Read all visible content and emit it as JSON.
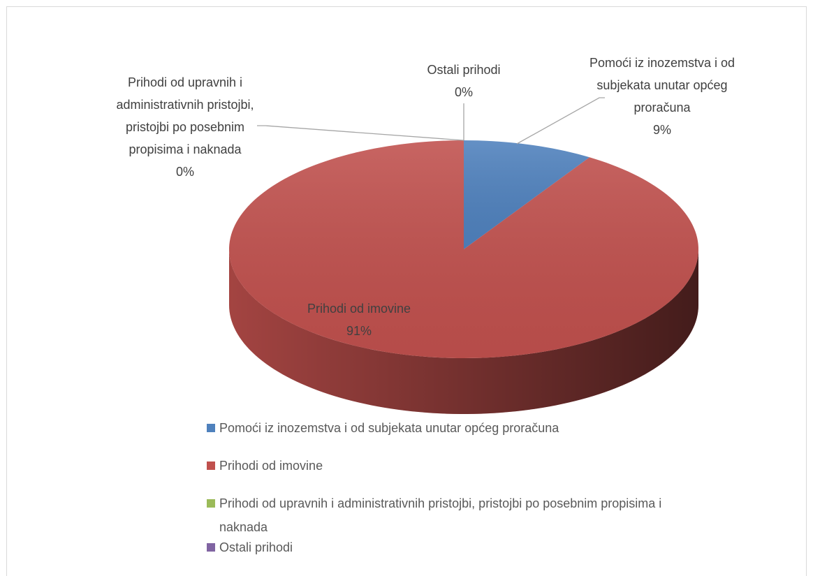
{
  "chart_data": {
    "type": "pie",
    "categories": [
      "Pomoći iz inozemstva i od subjekata unutar općeg proračuna",
      "Prihodi od imovine",
      "Prihodi od upravnih i administrativnih pristojbi, pristojbi po posebnim propisima i naknada",
      "Ostali prihodi"
    ],
    "values": [
      9,
      91,
      0,
      0
    ],
    "value_labels": [
      "9%",
      "91%",
      "0%",
      "0%"
    ],
    "colors": [
      "#4f81bd",
      "#c0504d",
      "#9bbb59",
      "#8064a2"
    ],
    "legend": "bottom"
  }
}
